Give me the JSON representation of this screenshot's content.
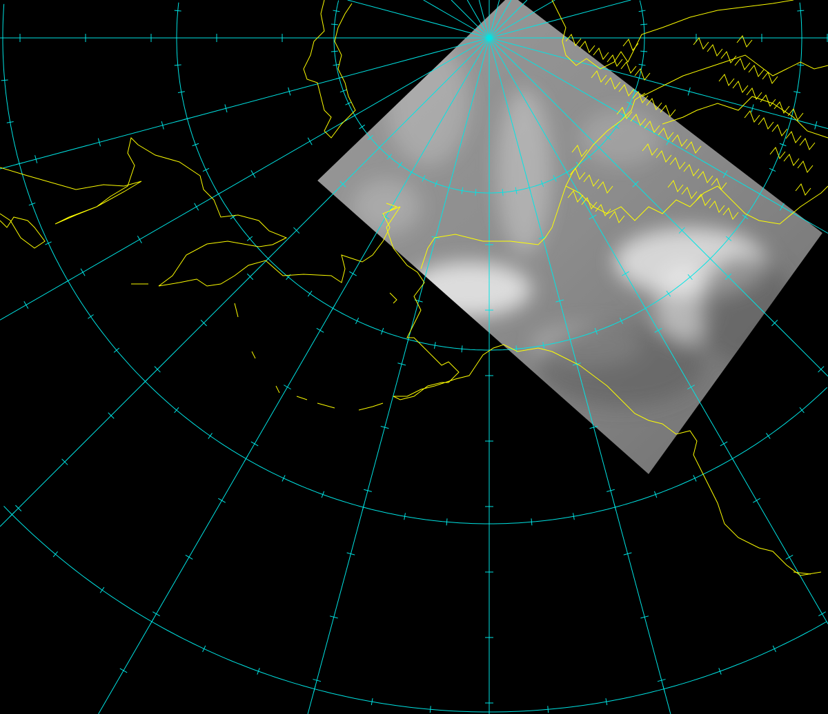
{
  "map": {
    "projection": "polar-stereographic",
    "background_color": "#000000",
    "graticule": {
      "color": "#00e5e5",
      "longitude_interval_deg": 15,
      "latitude_interval_deg": 10
    },
    "coastline_color": "#ffff00",
    "satellite_image": {
      "type": "grayscale-infrared-swath",
      "base_color": "#8a8a8a",
      "cloud_color": "#f0f0f0"
    }
  }
}
